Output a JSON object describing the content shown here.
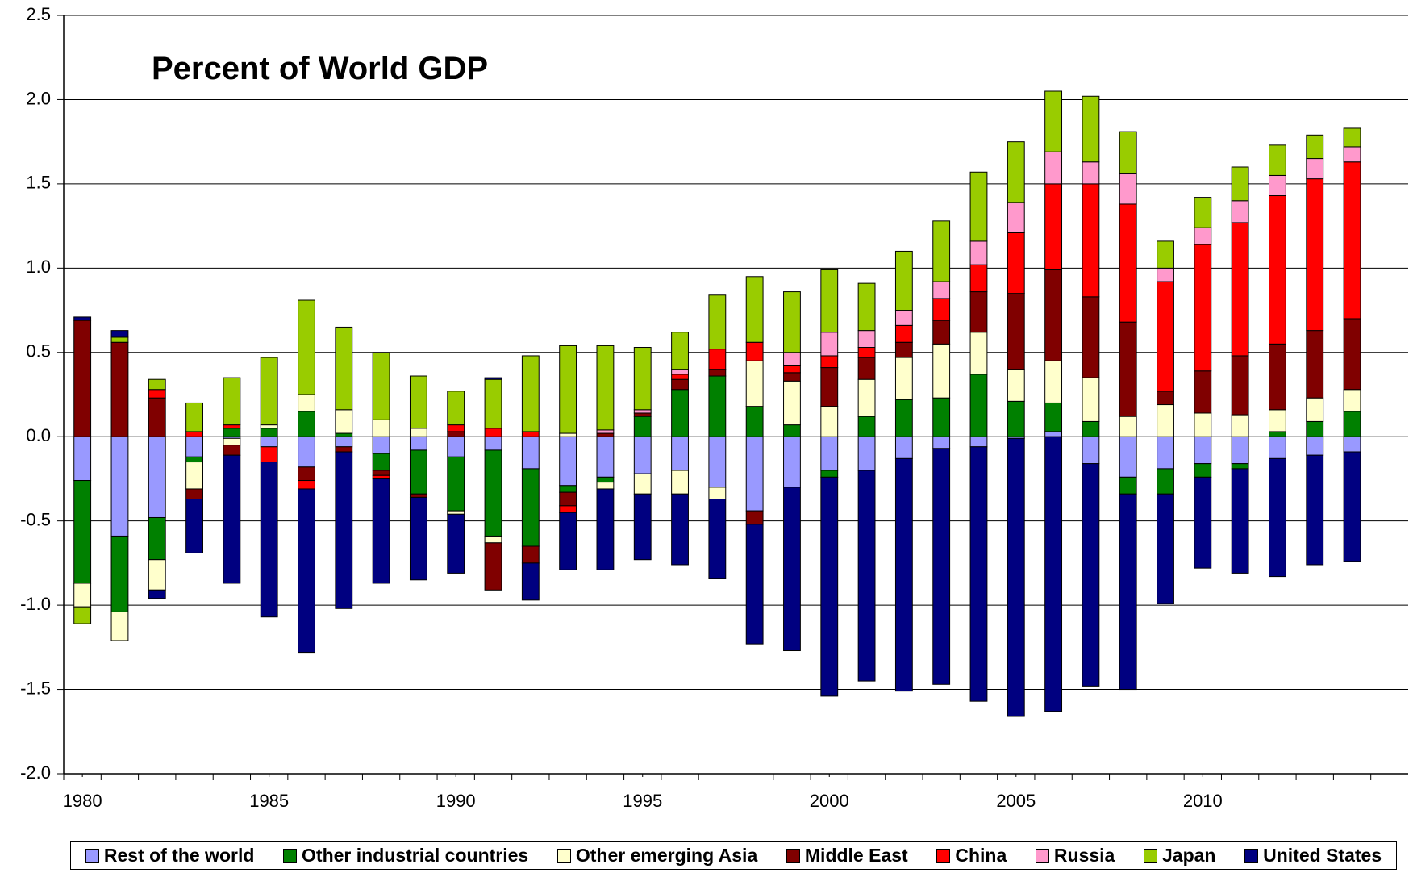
{
  "chart_data": {
    "type": "stacked-bar",
    "title": "Percent of World GDP",
    "x": [
      1980,
      1981,
      1982,
      1983,
      1984,
      1985,
      1986,
      1987,
      1988,
      1989,
      1990,
      1991,
      1992,
      1993,
      1994,
      1995,
      1996,
      1997,
      1998,
      1999,
      2000,
      2001,
      2002,
      2003,
      2004,
      2005,
      2006,
      2007,
      2008,
      2009,
      2010,
      2011,
      2012,
      2013,
      2014
    ],
    "xlim": [
      1979.5,
      2015.5
    ],
    "xticks": [
      1980,
      1985,
      1990,
      1995,
      2000,
      2005,
      2010
    ],
    "ylim": [
      -2,
      2.5
    ],
    "yticks": [
      2.5,
      {
        "value": 2,
        "label": "2.0"
      },
      1.5,
      {
        "value": 1,
        "label": "1.0"
      },
      0.5,
      {
        "value": 0,
        "label": "0.0"
      },
      -0.5,
      {
        "value": -1,
        "label": "-1.0"
      },
      -1.5,
      {
        "value": -2,
        "label": "-2.0"
      }
    ],
    "grid": true,
    "legend": "bottom",
    "series": [
      {
        "name": "Rest of the world",
        "color": "#9999ff",
        "values": [
          -0.26,
          -0.59,
          -0.48,
          -0.12,
          -0.01,
          -0.06,
          -0.18,
          -0.06,
          -0.1,
          -0.08,
          -0.12,
          -0.08,
          -0.19,
          -0.29,
          -0.24,
          -0.22,
          -0.2,
          -0.3,
          -0.44,
          -0.3,
          -0.2,
          -0.2,
          -0.13,
          -0.07,
          -0.06,
          -0.01,
          0.03,
          -0.16,
          -0.24,
          -0.19,
          -0.16,
          -0.16,
          -0.13,
          -0.11,
          -0.09
        ]
      },
      {
        "name": "Other industrial countries",
        "color": "#008000",
        "values": [
          -0.61,
          -0.45,
          -0.25,
          -0.03,
          0.05,
          0.05,
          0.15,
          0.02,
          -0.1,
          -0.26,
          -0.32,
          -0.51,
          -0.46,
          -0.04,
          -0.03,
          0.12,
          0.28,
          0.36,
          0.18,
          0.07,
          -0.04,
          0.12,
          0.22,
          0.23,
          0.37,
          0.21,
          0.17,
          0.09,
          -0.1,
          -0.15,
          -0.08,
          -0.03,
          0.03,
          0.09,
          0.15
        ]
      },
      {
        "name": "Other emerging Asia",
        "color": "#ffffcc",
        "values": [
          -0.14,
          -0.17,
          -0.18,
          -0.16,
          -0.04,
          0.02,
          0.1,
          0.14,
          0.1,
          0.05,
          -0.02,
          -0.04,
          0,
          0.02,
          -0.04,
          -0.12,
          -0.14,
          -0.07,
          0.27,
          0.26,
          0.18,
          0.22,
          0.25,
          0.32,
          0.25,
          0.19,
          0.25,
          0.26,
          0.12,
          0.19,
          0.14,
          0.13,
          0.13,
          0.14,
          0.13
        ]
      },
      {
        "name": "Middle East",
        "color": "#800000",
        "values": [
          0.69,
          0.56,
          0.23,
          -0.06,
          -0.06,
          0,
          -0.08,
          -0.03,
          -0.03,
          -0.02,
          0.03,
          -0.28,
          -0.1,
          -0.08,
          0.02,
          0.02,
          0.06,
          0.04,
          -0.08,
          0.05,
          0.23,
          0.13,
          0.09,
          0.14,
          0.24,
          0.45,
          0.54,
          0.48,
          0.56,
          0.08,
          0.25,
          0.35,
          0.39,
          0.4,
          0.42
        ]
      },
      {
        "name": "China",
        "color": "#ff0000",
        "values": [
          0,
          0,
          0.05,
          0.03,
          0.02,
          -0.09,
          -0.05,
          0,
          -0.02,
          0,
          0.04,
          0.05,
          0.03,
          -0.04,
          0,
          0,
          0.03,
          0.12,
          0.11,
          0.04,
          0.07,
          0.06,
          0.1,
          0.13,
          0.16,
          0.36,
          0.51,
          0.67,
          0.7,
          0.65,
          0.75,
          0.79,
          0.88,
          0.9,
          0.93
        ]
      },
      {
        "name": "Russia",
        "color": "#ff99cc",
        "values": [
          0,
          0,
          0,
          0,
          0,
          0,
          0,
          0,
          0,
          0,
          0,
          0,
          0,
          0,
          0.02,
          0.02,
          0.03,
          0,
          0,
          0.08,
          0.14,
          0.1,
          0.09,
          0.1,
          0.14,
          0.18,
          0.19,
          0.13,
          0.18,
          0.08,
          0.1,
          0.13,
          0.12,
          0.12,
          0.09
        ]
      },
      {
        "name": "Japan",
        "color": "#99cc00",
        "values": [
          -0.1,
          0.03,
          0.06,
          0.17,
          0.28,
          0.4,
          0.56,
          0.49,
          0.4,
          0.31,
          0.2,
          0.29,
          0.45,
          0.52,
          0.5,
          0.37,
          0.22,
          0.32,
          0.39,
          0.36,
          0.37,
          0.28,
          0.35,
          0.36,
          0.41,
          0.36,
          0.36,
          0.39,
          0.25,
          0.16,
          0.18,
          0.2,
          0.18,
          0.14,
          0.11
        ]
      },
      {
        "name": "United States",
        "color": "#000080",
        "values": [
          0.02,
          0.04,
          -0.05,
          -0.32,
          -0.76,
          -0.92,
          -0.97,
          -0.93,
          -0.62,
          -0.49,
          -0.35,
          0.01,
          -0.22,
          -0.34,
          -0.48,
          -0.39,
          -0.42,
          -0.47,
          -0.71,
          -0.97,
          -1.3,
          -1.25,
          -1.38,
          -1.4,
          -1.51,
          -1.65,
          -1.63,
          -1.32,
          -1.16,
          -0.65,
          -0.54,
          -0.62,
          -0.7,
          -0.65,
          -0.65
        ]
      }
    ]
  }
}
